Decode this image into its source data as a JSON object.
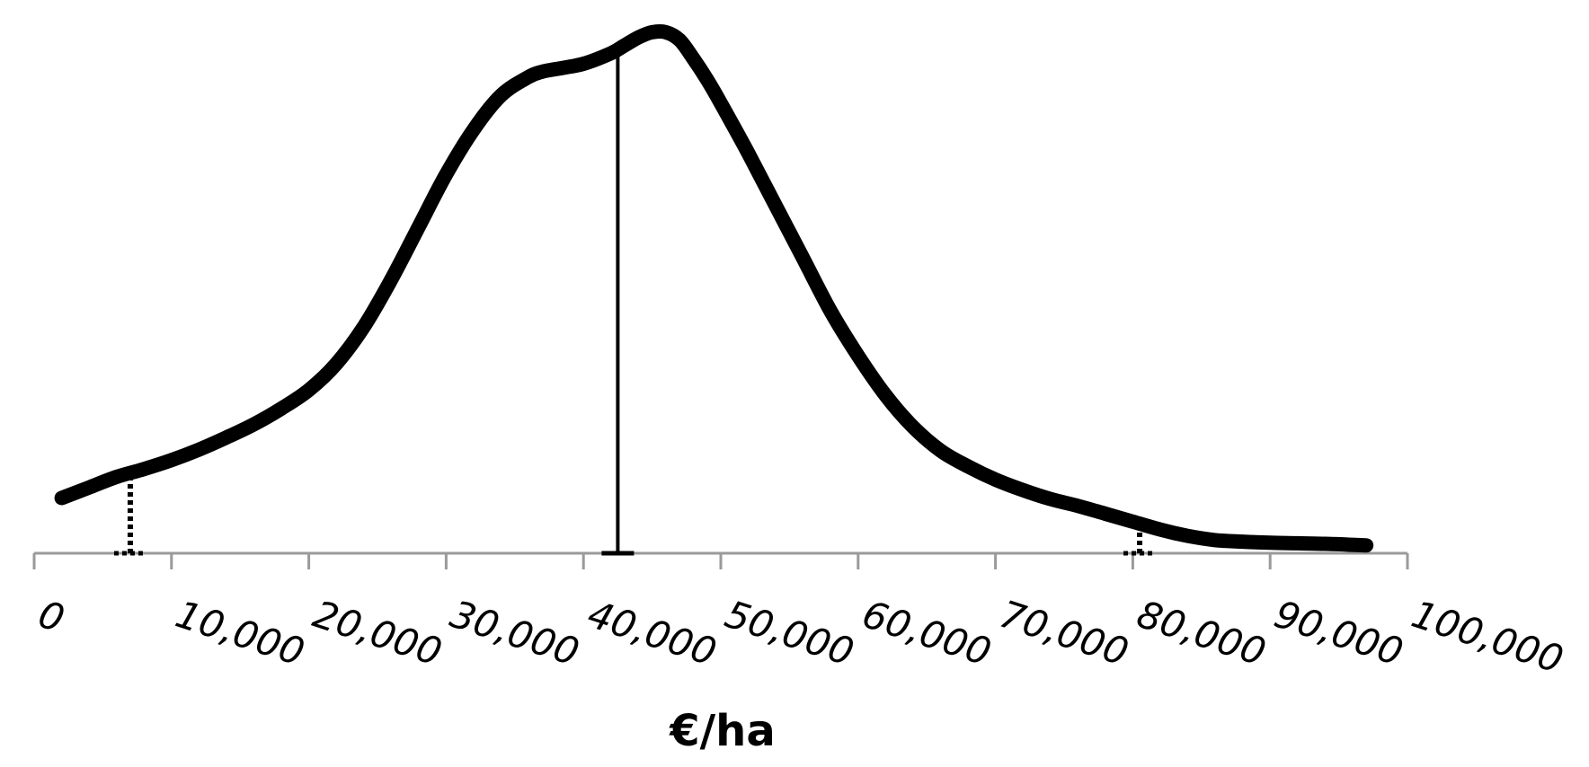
{
  "chart_data": {
    "type": "line",
    "title": "",
    "xlabel": "€/ha",
    "ylabel": "",
    "xlim": [
      0,
      100000
    ],
    "ylim": [
      0,
      1
    ],
    "grid": false,
    "legend": "none",
    "x_ticks": [
      0,
      10000,
      20000,
      30000,
      40000,
      50000,
      60000,
      70000,
      80000,
      90000,
      100000
    ],
    "x_tick_labels": [
      "0",
      "10,000",
      "20,000",
      "30,000",
      "40,000",
      "50,000",
      "60,000",
      "70,000",
      "80,000",
      "90,000",
      "100,000"
    ],
    "series": [
      {
        "style": "density-curve",
        "color": "#000000",
        "x": [
          2000,
          4000,
          6000,
          8000,
          10000,
          12000,
          14000,
          16000,
          18000,
          20000,
          22000,
          24000,
          26000,
          28000,
          30000,
          32000,
          34000,
          36000,
          37000,
          38000,
          40000,
          42000,
          43000,
          44000,
          45000,
          46000,
          47000,
          48000,
          49000,
          50000,
          52000,
          54000,
          56000,
          58000,
          60000,
          62000,
          64000,
          66000,
          68000,
          70000,
          72000,
          74000,
          76000,
          78000,
          80000,
          82000,
          84000,
          86000,
          88000,
          90000,
          92000,
          94000,
          96000,
          97000
        ],
        "y": [
          0.105,
          0.125,
          0.145,
          0.16,
          0.177,
          0.197,
          0.22,
          0.245,
          0.275,
          0.31,
          0.36,
          0.43,
          0.52,
          0.62,
          0.72,
          0.805,
          0.87,
          0.905,
          0.915,
          0.92,
          0.93,
          0.95,
          0.965,
          0.98,
          0.99,
          0.99,
          0.975,
          0.94,
          0.9,
          0.855,
          0.76,
          0.66,
          0.56,
          0.46,
          0.375,
          0.3,
          0.24,
          0.195,
          0.165,
          0.14,
          0.12,
          0.103,
          0.09,
          0.075,
          0.06,
          0.045,
          0.033,
          0.025,
          0.022,
          0.02,
          0.019,
          0.018,
          0.016,
          0.015
        ]
      }
    ],
    "reference_lines": [
      {
        "x": 7000,
        "style": "dotted"
      },
      {
        "x": 42500,
        "style": "solid"
      },
      {
        "x": 80500,
        "style": "dotted"
      }
    ]
  }
}
